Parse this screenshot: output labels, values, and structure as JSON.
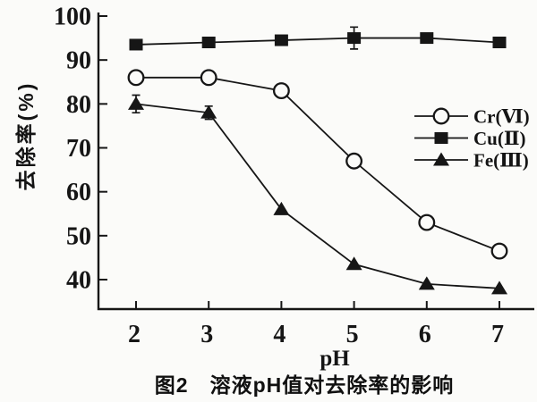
{
  "figure": {
    "caption": "图2　溶液pH值对去除率的影响",
    "x_axis_label": "pH",
    "y_axis_label": "去除率(%)"
  },
  "chart_data": {
    "type": "line",
    "title": "",
    "xlabel": "pH",
    "ylabel": "去除率(%)",
    "caption": "图2　溶液pH值对去除率的影响",
    "x": [
      2,
      3,
      4,
      5,
      6,
      7
    ],
    "xticks": [
      2,
      3,
      4,
      5,
      6,
      7
    ],
    "yticks": [
      40,
      50,
      60,
      70,
      80,
      90,
      100
    ],
    "xlim": [
      1.5,
      7.5
    ],
    "ylim": [
      33,
      101
    ],
    "grid": false,
    "legend_position": "middle-right",
    "line_color": "#161616",
    "marker_fill_open": "#fbfbf9",
    "series": [
      {
        "id": "cr",
        "name": "Cr(Ⅵ)",
        "marker": "open-circle",
        "values": [
          86,
          86,
          83,
          67,
          53,
          46.5
        ],
        "errors": [
          0,
          0,
          0,
          0,
          1,
          1
        ]
      },
      {
        "id": "cu",
        "name": "Cu(Ⅱ)",
        "marker": "filled-square",
        "values": [
          93.5,
          94,
          94.5,
          95,
          95,
          94
        ],
        "errors": [
          0,
          1,
          0,
          2.5,
          0,
          1
        ]
      },
      {
        "id": "fe",
        "name": "Fe(Ⅲ)",
        "marker": "filled-triangle",
        "values": [
          80,
          78,
          56,
          43.5,
          39,
          38
        ],
        "errors": [
          2,
          1.5,
          0,
          0,
          0,
          0
        ]
      }
    ]
  }
}
